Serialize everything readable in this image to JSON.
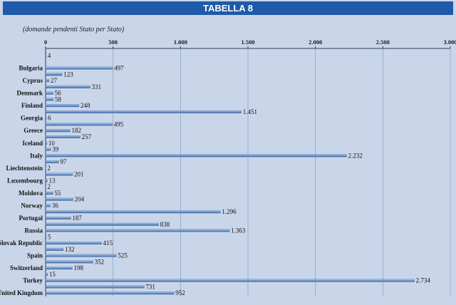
{
  "title": "TABELLA 8",
  "chart_data": {
    "type": "bar",
    "orientation": "horizontal",
    "subtitle": "(domande pendenti Stato per Stato)",
    "xlim": [
      0,
      3000
    ],
    "ticks": [
      0,
      500,
      1000,
      1500,
      2000,
      2500,
      3000
    ],
    "tick_labels": [
      "0",
      "500",
      "1.000",
      "1.500",
      "2.000",
      "2.500",
      "3.000"
    ],
    "grid": true,
    "bars": [
      {
        "label": "",
        "value": 4,
        "text": "4"
      },
      {
        "label": "",
        "value": 0,
        "text": ""
      },
      {
        "label": "Bulgaria",
        "value": 497,
        "text": "497"
      },
      {
        "label": "",
        "value": 123,
        "text": "123"
      },
      {
        "label": "Cyprus",
        "value": 27,
        "text": "27"
      },
      {
        "label": "",
        "value": 331,
        "text": "331"
      },
      {
        "label": "Denmark",
        "value": 56,
        "text": "56"
      },
      {
        "label": "",
        "value": 58,
        "text": "58"
      },
      {
        "label": "Finland",
        "value": 248,
        "text": "248"
      },
      {
        "label": "",
        "value": 1451,
        "text": "1.451"
      },
      {
        "label": "Georgia",
        "value": 6,
        "text": "6"
      },
      {
        "label": "",
        "value": 495,
        "text": "495"
      },
      {
        "label": "Greece",
        "value": 182,
        "text": "182"
      },
      {
        "label": "",
        "value": 257,
        "text": "257"
      },
      {
        "label": "Iceland",
        "value": 10,
        "text": "10"
      },
      {
        "label": "",
        "value": 39,
        "text": "39"
      },
      {
        "label": "Italy",
        "value": 2232,
        "text": "2.232"
      },
      {
        "label": "",
        "value": 97,
        "text": "97"
      },
      {
        "label": "Liechtenstein",
        "value": 2,
        "text": "2"
      },
      {
        "label": "",
        "value": 201,
        "text": "201"
      },
      {
        "label": "Luxembourg",
        "value": 13,
        "text": "13"
      },
      {
        "label": "",
        "value": 2,
        "text": "2"
      },
      {
        "label": "Moldova",
        "value": 55,
        "text": "55"
      },
      {
        "label": "",
        "value": 204,
        "text": "204"
      },
      {
        "label": "Norway",
        "value": 36,
        "text": "36"
      },
      {
        "label": "",
        "value": 1296,
        "text": "1.296"
      },
      {
        "label": "Portugal",
        "value": 187,
        "text": "187"
      },
      {
        "label": "",
        "value": 838,
        "text": "838"
      },
      {
        "label": "Russia",
        "value": 1363,
        "text": "1.363"
      },
      {
        "label": "",
        "value": 5,
        "text": "5"
      },
      {
        "label": "Slovak Republic",
        "value": 415,
        "text": "415"
      },
      {
        "label": "",
        "value": 132,
        "text": "132"
      },
      {
        "label": "Spain",
        "value": 525,
        "text": "525"
      },
      {
        "label": "",
        "value": 352,
        "text": "352"
      },
      {
        "label": "Switzerland",
        "value": 198,
        "text": "198"
      },
      {
        "label": "",
        "value": 15,
        "text": "15"
      },
      {
        "label": "Turkey",
        "value": 2734,
        "text": "2.734"
      },
      {
        "label": "",
        "value": 731,
        "text": "731"
      },
      {
        "label": "United Kingdom",
        "value": 952,
        "text": "952"
      }
    ],
    "bar_color": "#6f95c8",
    "grid_color": "#8ea4c6"
  }
}
